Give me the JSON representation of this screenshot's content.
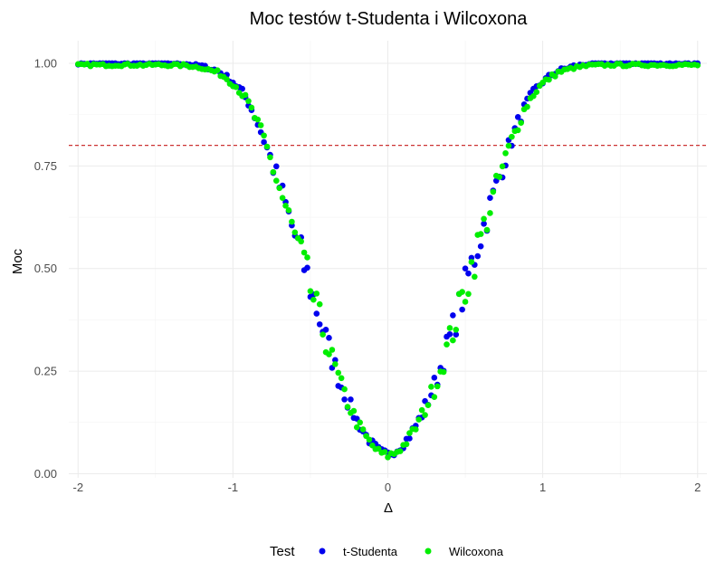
{
  "chart_data": {
    "type": "scatter",
    "title": "Moc testów t-Studenta i Wilcoxona",
    "xlabel": "Δ",
    "ylabel": "Moc",
    "xlim": [
      -2.06,
      2.06
    ],
    "ylim": [
      -0.01,
      1.055
    ],
    "x_ticks": [
      -2,
      -1,
      0,
      1,
      2
    ],
    "x_tick_labels": [
      "-2",
      "-1",
      "0",
      "1",
      "2"
    ],
    "y_ticks": [
      0,
      0.25,
      0.5,
      0.75,
      1.0
    ],
    "y_tick_labels": [
      "0.00",
      "0.25",
      "0.50",
      "0.75",
      "1.00"
    ],
    "grid": true,
    "reference_line": {
      "y": 0.8,
      "color": "#cc3333",
      "style": "dashed"
    },
    "legend": {
      "title": "Test",
      "position": "bottom"
    },
    "series": [
      {
        "name": "t-Studenta",
        "color": "#0000ee",
        "x": [],
        "y": []
      },
      {
        "name": "Wilcoxona",
        "color": "#00ee00",
        "x": [],
        "y": []
      }
    ],
    "curve_samples": [
      [
        -2.0,
        1.0
      ],
      [
        -1.6,
        1.0
      ],
      [
        -1.4,
        1.0
      ],
      [
        -1.3,
        0.999
      ],
      [
        -1.2,
        0.993
      ],
      [
        -1.1,
        0.982
      ],
      [
        -1.05,
        0.97
      ],
      [
        -1.0,
        0.955
      ],
      [
        -0.95,
        0.935
      ],
      [
        -0.9,
        0.905
      ],
      [
        -0.85,
        0.865
      ],
      [
        -0.8,
        0.815
      ],
      [
        -0.75,
        0.76
      ],
      [
        -0.7,
        0.7
      ],
      [
        -0.65,
        0.64
      ],
      [
        -0.6,
        0.58
      ],
      [
        -0.55,
        0.52
      ],
      [
        -0.5,
        0.455
      ],
      [
        -0.45,
        0.39
      ],
      [
        -0.4,
        0.33
      ],
      [
        -0.35,
        0.27
      ],
      [
        -0.3,
        0.215
      ],
      [
        -0.25,
        0.17
      ],
      [
        -0.2,
        0.13
      ],
      [
        -0.15,
        0.098
      ],
      [
        -0.1,
        0.072
      ],
      [
        -0.05,
        0.055
      ],
      [
        0.0,
        0.048
      ],
      [
        0.05,
        0.055
      ],
      [
        0.1,
        0.072
      ],
      [
        0.15,
        0.098
      ],
      [
        0.2,
        0.13
      ],
      [
        0.25,
        0.17
      ],
      [
        0.3,
        0.215
      ],
      [
        0.35,
        0.27
      ],
      [
        0.4,
        0.33
      ],
      [
        0.45,
        0.39
      ],
      [
        0.5,
        0.455
      ],
      [
        0.55,
        0.52
      ],
      [
        0.6,
        0.58
      ],
      [
        0.65,
        0.64
      ],
      [
        0.7,
        0.7
      ],
      [
        0.75,
        0.76
      ],
      [
        0.8,
        0.815
      ],
      [
        0.85,
        0.865
      ],
      [
        0.9,
        0.905
      ],
      [
        0.95,
        0.935
      ],
      [
        1.0,
        0.955
      ],
      [
        1.05,
        0.97
      ],
      [
        1.1,
        0.982
      ],
      [
        1.2,
        0.993
      ],
      [
        1.3,
        0.999
      ],
      [
        1.4,
        1.0
      ],
      [
        1.6,
        1.0
      ],
      [
        2.0,
        1.0
      ]
    ]
  }
}
